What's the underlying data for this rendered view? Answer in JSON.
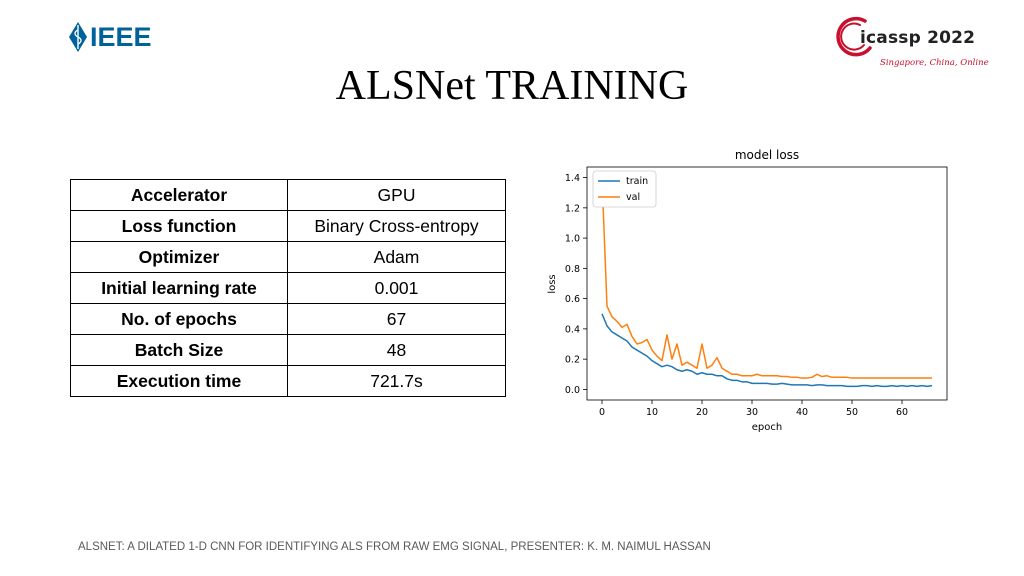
{
  "header": {
    "ieee_logo_text": "IEEE",
    "icassp_logo_text": "icassp 2022",
    "icassp_subtitle": "Singapore, China, Online"
  },
  "slide": {
    "title": "ALSNet TRAINING"
  },
  "table": {
    "rows": [
      {
        "key": "Accelerator",
        "value": "GPU"
      },
      {
        "key": "Loss function",
        "value": "Binary Cross-entropy"
      },
      {
        "key": "Optimizer",
        "value": "Adam"
      },
      {
        "key": "Initial learning rate",
        "value": "0.001"
      },
      {
        "key": "No. of epochs",
        "value": "67"
      },
      {
        "key": "Batch Size",
        "value": "48"
      },
      {
        "key": "Execution time",
        "value": "721.7s"
      }
    ]
  },
  "chart_data": {
    "type": "line",
    "title": "model loss",
    "xlabel": "epoch",
    "ylabel": "loss",
    "xlim": [
      -3,
      69
    ],
    "ylim": [
      -0.07,
      1.47
    ],
    "xticks": [
      0,
      10,
      20,
      30,
      40,
      50,
      60
    ],
    "yticks": [
      0.0,
      0.2,
      0.4,
      0.6,
      0.8,
      1.0,
      1.2,
      1.4
    ],
    "ytick_labels": [
      "0.0",
      "0.2",
      "0.4",
      "0.6",
      "0.8",
      "1.0",
      "1.2",
      "1.4"
    ],
    "legend_position": "top-left",
    "series": [
      {
        "name": "train",
        "color": "#1f77b4",
        "x": [
          0,
          1,
          2,
          3,
          4,
          5,
          6,
          7,
          8,
          9,
          10,
          11,
          12,
          13,
          14,
          15,
          16,
          17,
          18,
          19,
          20,
          21,
          22,
          23,
          24,
          25,
          26,
          27,
          28,
          29,
          30,
          31,
          32,
          33,
          34,
          35,
          36,
          37,
          38,
          39,
          40,
          41,
          42,
          43,
          44,
          45,
          46,
          47,
          48,
          49,
          50,
          51,
          52,
          53,
          54,
          55,
          56,
          57,
          58,
          59,
          60,
          61,
          62,
          63,
          64,
          65,
          66
        ],
        "values": [
          0.5,
          0.42,
          0.38,
          0.36,
          0.34,
          0.32,
          0.28,
          0.26,
          0.24,
          0.22,
          0.19,
          0.17,
          0.15,
          0.16,
          0.15,
          0.13,
          0.12,
          0.13,
          0.12,
          0.1,
          0.11,
          0.1,
          0.1,
          0.09,
          0.09,
          0.07,
          0.06,
          0.06,
          0.05,
          0.05,
          0.04,
          0.04,
          0.04,
          0.04,
          0.035,
          0.035,
          0.04,
          0.035,
          0.03,
          0.03,
          0.03,
          0.03,
          0.025,
          0.03,
          0.03,
          0.025,
          0.025,
          0.025,
          0.025,
          0.02,
          0.02,
          0.02,
          0.025,
          0.025,
          0.02,
          0.025,
          0.02,
          0.02,
          0.025,
          0.02,
          0.025,
          0.02,
          0.025,
          0.02,
          0.025,
          0.02,
          0.025
        ]
      },
      {
        "name": "val",
        "color": "#ff7f0e",
        "x": [
          0,
          1,
          2,
          3,
          4,
          5,
          6,
          7,
          8,
          9,
          10,
          11,
          12,
          13,
          14,
          15,
          16,
          17,
          18,
          19,
          20,
          21,
          22,
          23,
          24,
          25,
          26,
          27,
          28,
          29,
          30,
          31,
          32,
          33,
          34,
          35,
          36,
          37,
          38,
          39,
          40,
          41,
          42,
          43,
          44,
          45,
          46,
          47,
          48,
          49,
          50,
          51,
          52,
          53,
          54,
          55,
          56,
          57,
          58,
          59,
          60,
          61,
          62,
          63,
          64,
          65,
          66
        ],
        "values": [
          1.4,
          0.55,
          0.48,
          0.45,
          0.41,
          0.43,
          0.35,
          0.3,
          0.31,
          0.33,
          0.26,
          0.22,
          0.19,
          0.36,
          0.2,
          0.3,
          0.16,
          0.18,
          0.16,
          0.14,
          0.3,
          0.14,
          0.16,
          0.21,
          0.14,
          0.12,
          0.1,
          0.1,
          0.09,
          0.09,
          0.09,
          0.1,
          0.09,
          0.09,
          0.09,
          0.09,
          0.085,
          0.085,
          0.08,
          0.08,
          0.075,
          0.075,
          0.08,
          0.1,
          0.085,
          0.09,
          0.08,
          0.08,
          0.08,
          0.08,
          0.075,
          0.075,
          0.075,
          0.075,
          0.075,
          0.075,
          0.075,
          0.075,
          0.075,
          0.075,
          0.075,
          0.075,
          0.075,
          0.075,
          0.075,
          0.075,
          0.075
        ]
      }
    ]
  },
  "footer": {
    "text": "ALSNET: A DILATED 1-D CNN FOR IDENTIFYING ALS FROM RAW EMG SIGNAL, PRESENTER: K. M. NAIMUL HASSAN"
  }
}
